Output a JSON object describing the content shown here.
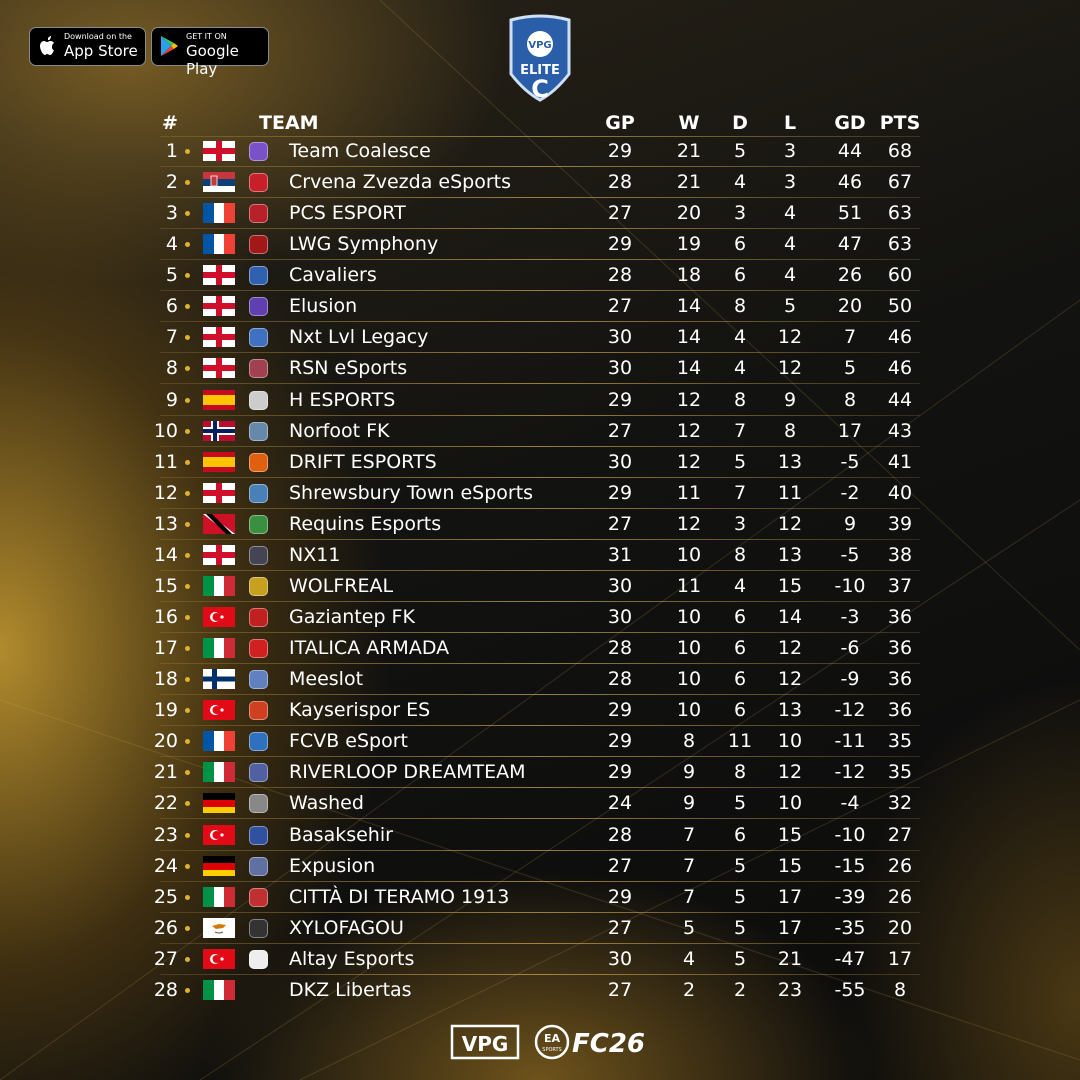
{
  "badges": {
    "apple": {
      "small": "Download on the",
      "big": "App Store"
    },
    "google": {
      "small": "GET IT ON",
      "big": "Google Play"
    }
  },
  "logo": {
    "brand": "VPG",
    "league": "ELITE",
    "tier": "C"
  },
  "table": {
    "columns": [
      "#",
      "TEAM",
      "GP",
      "W",
      "D",
      "L",
      "GD",
      "PTS"
    ],
    "rows": [
      [
        1,
        "Team Coalesce",
        29,
        21,
        5,
        3,
        44,
        68
      ],
      [
        2,
        "Crvena Zvezda eSports",
        28,
        21,
        4,
        3,
        46,
        67
      ],
      [
        3,
        "PCS ESPORT",
        27,
        20,
        3,
        4,
        51,
        63
      ],
      [
        4,
        "LWG Symphony",
        29,
        19,
        6,
        4,
        47,
        63
      ],
      [
        5,
        "Cavaliers",
        28,
        18,
        6,
        4,
        26,
        60
      ],
      [
        6,
        "Elusion",
        27,
        14,
        8,
        5,
        20,
        50
      ],
      [
        7,
        "Nxt Lvl Legacy",
        30,
        14,
        4,
        12,
        7,
        46
      ],
      [
        8,
        "RSN eSports",
        30,
        14,
        4,
        12,
        5,
        46
      ],
      [
        9,
        "H ESPORTS",
        29,
        12,
        8,
        9,
        8,
        44
      ],
      [
        10,
        "Norfoot FK",
        27,
        12,
        7,
        8,
        17,
        43
      ],
      [
        11,
        "DRIFT ESPORTS",
        30,
        12,
        5,
        13,
        -5,
        41
      ],
      [
        12,
        "Shrewsbury Town eSports",
        29,
        11,
        7,
        11,
        -2,
        40
      ],
      [
        13,
        "Requins Esports",
        27,
        12,
        3,
        12,
        9,
        39
      ],
      [
        14,
        "NX11",
        31,
        10,
        8,
        13,
        -5,
        38
      ],
      [
        15,
        "WOLFREAL",
        30,
        11,
        4,
        15,
        -10,
        37
      ],
      [
        16,
        "Gaziantep FK",
        30,
        10,
        6,
        14,
        -3,
        36
      ],
      [
        17,
        "ITALICA ARMADA",
        28,
        10,
        6,
        12,
        -6,
        36
      ],
      [
        18,
        "Meeslot",
        28,
        10,
        6,
        12,
        -9,
        36
      ],
      [
        19,
        "Kayserispor ES",
        29,
        10,
        6,
        13,
        -12,
        36
      ],
      [
        20,
        "FCVB eSport",
        29,
        8,
        11,
        10,
        -11,
        35
      ],
      [
        21,
        "RIVERLOOP DREAMTEAM",
        29,
        9,
        8,
        12,
        -12,
        35
      ],
      [
        22,
        "Washed",
        24,
        9,
        5,
        10,
        -4,
        32
      ],
      [
        23,
        "Basaksehir",
        28,
        7,
        6,
        15,
        -10,
        27
      ],
      [
        24,
        "Expusion",
        27,
        7,
        5,
        15,
        -15,
        26
      ],
      [
        25,
        "CITTÀ DI TERAMO 1913",
        29,
        7,
        5,
        17,
        -39,
        26
      ],
      [
        26,
        "XYLOFAGOU",
        27,
        5,
        5,
        17,
        -35,
        20
      ],
      [
        27,
        "Altay Esports",
        30,
        4,
        5,
        21,
        -47,
        17
      ],
      [
        28,
        "DKZ Libertas",
        27,
        2,
        2,
        23,
        -55,
        8
      ]
    ]
  },
  "footer": {
    "brand": "VPG",
    "ea": "EA",
    "ea_sub": "SPORTS",
    "game": "FC26"
  }
}
